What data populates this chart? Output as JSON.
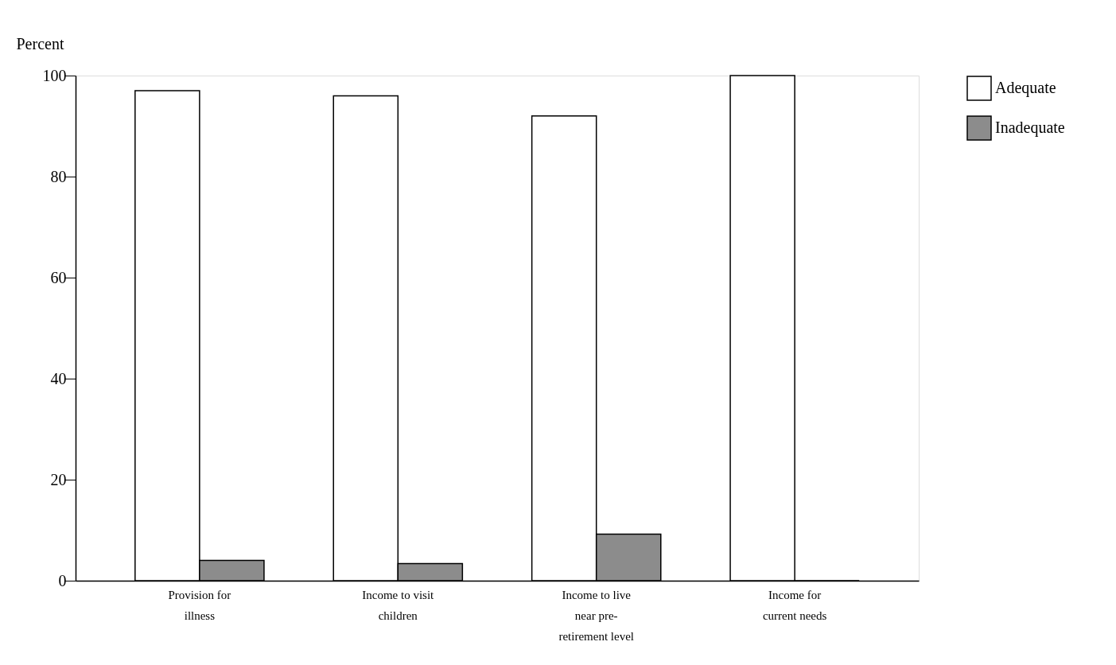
{
  "chart_data": {
    "type": "bar",
    "ylabel": "Percent",
    "categories": [
      "Provision for illness",
      "Income to visit children",
      "Income to live near pre-retirement level",
      "Income for current needs"
    ],
    "series": [
      {
        "name": "Adequate",
        "color": "#ffffff",
        "values": [
          97,
          96,
          92,
          100
        ]
      },
      {
        "name": "Inadequate",
        "color": "#8c8c8c",
        "values": [
          4,
          3.4,
          9.2,
          0
        ]
      }
    ],
    "ylim": [
      0,
      100
    ],
    "yticks": [
      0,
      20,
      40,
      60,
      80,
      100
    ],
    "grid": false,
    "legend": "top right"
  }
}
